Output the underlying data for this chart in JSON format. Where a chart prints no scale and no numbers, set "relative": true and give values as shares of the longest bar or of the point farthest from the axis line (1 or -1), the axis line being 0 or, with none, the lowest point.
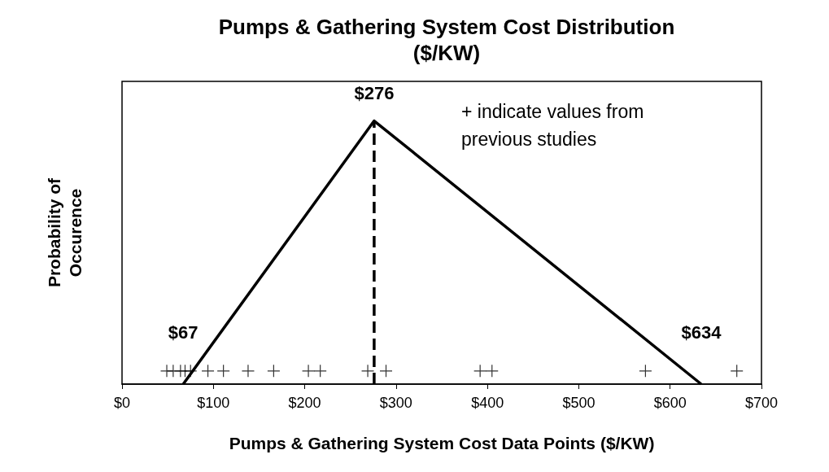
{
  "chart_data": {
    "type": "line",
    "title": "Pumps & Gathering System Cost Distribution\n($/KW)",
    "xlabel": "Pumps & Gathering System Cost Data Points ($/KW)",
    "ylabel": "Probability of\nOccurence",
    "relative": true,
    "xlim": [
      0,
      700
    ],
    "xticks": [
      {
        "value": 0,
        "label": "$0"
      },
      {
        "value": 100,
        "label": "$100"
      },
      {
        "value": 200,
        "label": "$200"
      },
      {
        "value": 300,
        "label": "$300"
      },
      {
        "value": 400,
        "label": "$400"
      },
      {
        "value": 500,
        "label": "$500"
      },
      {
        "value": 600,
        "label": "$600"
      },
      {
        "value": 700,
        "label": "$700"
      }
    ],
    "grid": false,
    "series": [
      {
        "color": "#000000",
        "line_style": "solid",
        "marker": "none",
        "x": [
          67,
          276,
          634
        ],
        "values": [
          0,
          1,
          0
        ]
      },
      {
        "color": "#000000",
        "line_style": "dashed",
        "marker": "none",
        "x": [
          276,
          276
        ],
        "values": [
          0,
          1
        ]
      },
      {
        "type": "scatter",
        "color": "#000000",
        "marker": "cross",
        "x": [
          49,
          56,
          64,
          69,
          75,
          94,
          111,
          138,
          166,
          204,
          217,
          269,
          289,
          392,
          405,
          573,
          673
        ],
        "values": [
          0.05,
          0.05,
          0.05,
          0.05,
          0.05,
          0.05,
          0.05,
          0.05,
          0.05,
          0.05,
          0.05,
          0.05,
          0.05,
          0.05,
          0.05,
          0.05,
          0.05
        ]
      }
    ],
    "annotations": [
      {
        "text": "$67",
        "x": 67,
        "y": 0
      },
      {
        "text": "$276",
        "x": 276,
        "y": 1
      },
      {
        "text": "$634",
        "x": 634,
        "y": 0
      },
      "+ indicate values from previous studies"
    ]
  }
}
